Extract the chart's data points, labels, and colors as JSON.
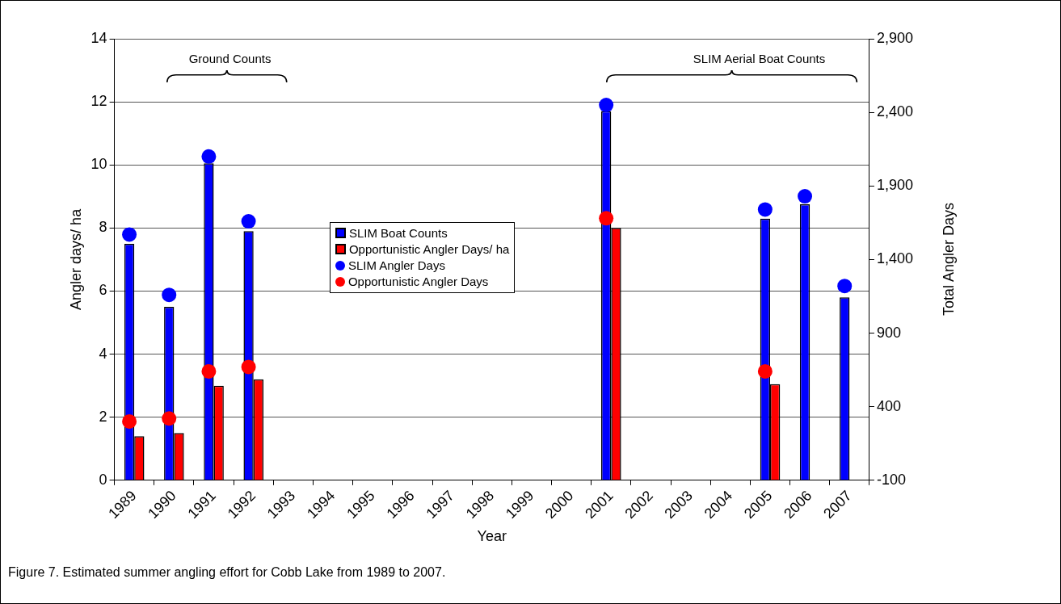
{
  "chart_data": {
    "type": "bar",
    "xlabel": "Year",
    "ylabel": "Angler days/ ha",
    "y2label": "Total Angler Days",
    "categories": [
      "1989",
      "1990",
      "1991",
      "1992",
      "1993",
      "1994",
      "1995",
      "1996",
      "1997",
      "1998",
      "1999",
      "2000",
      "2001",
      "2002",
      "2003",
      "2004",
      "2005",
      "2006",
      "2007"
    ],
    "series": [
      {
        "name": "SLIM Boat Counts",
        "color": "#0000ff",
        "values": [
          7.5,
          5.5,
          10.05,
          7.9,
          null,
          null,
          null,
          null,
          null,
          null,
          null,
          null,
          11.7,
          null,
          null,
          null,
          8.3,
          8.75,
          5.8
        ]
      },
      {
        "name": "Opportunistic Angler Days/ ha",
        "color": "#ff0000",
        "values": [
          1.4,
          1.5,
          3.0,
          3.2,
          null,
          null,
          null,
          null,
          null,
          null,
          null,
          null,
          8.0,
          null,
          null,
          null,
          3.05,
          null,
          null
        ]
      },
      {
        "name": "SLIM Angler Days",
        "type": "scatter",
        "axis": "y2",
        "color": "#0000ff",
        "values": [
          1570,
          1160,
          2100,
          1660,
          null,
          null,
          null,
          null,
          null,
          null,
          null,
          null,
          2450,
          null,
          null,
          null,
          1740,
          1830,
          1220
        ]
      },
      {
        "name": "Opportunistic Angler Days",
        "type": "scatter",
        "axis": "y2",
        "color": "#ff0000",
        "values": [
          300,
          320,
          640,
          670,
          null,
          null,
          null,
          null,
          null,
          null,
          null,
          null,
          1680,
          null,
          null,
          null,
          640,
          null,
          null
        ]
      }
    ],
    "ylim": [
      0,
      14
    ],
    "yticks": [
      0,
      2,
      4,
      6,
      8,
      10,
      12,
      14
    ],
    "y2lim": [
      -100,
      2900
    ],
    "y2ticks": [
      -100,
      400,
      900,
      {
        "value": 1400,
        "label": "1,400"
      },
      {
        "value": 1900,
        "label": "1,900"
      },
      {
        "value": 2400,
        "label": "2,400"
      },
      {
        "value": 2900,
        "label": "2,900"
      }
    ],
    "grid": "y",
    "legend": "center",
    "marker": "circle",
    "annotations": [
      "Ground Counts",
      "SLIM Aerial Boat Counts",
      "Figure 7. Estimated summer angling effort for Cobb Lake from 1989 to 2007."
    ]
  }
}
